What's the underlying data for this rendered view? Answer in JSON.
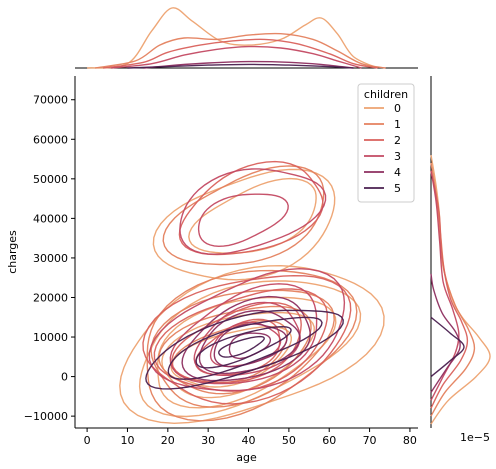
{
  "chart_data": {
    "type": "kde-joint",
    "xlabel": "age",
    "ylabel": "charges",
    "xlim": [
      -3,
      82
    ],
    "ylim": [
      -13000,
      76000
    ],
    "xticks": [
      0,
      10,
      20,
      30,
      40,
      50,
      60,
      70,
      80
    ],
    "yticks": [
      -10000,
      0,
      10000,
      20000,
      30000,
      40000,
      50000,
      60000,
      70000
    ],
    "right_marginal_offset_label": "1e−5",
    "legend": {
      "title": "children",
      "placement": "top-right",
      "entries": [
        "0",
        "1",
        "2",
        "3",
        "4",
        "5"
      ]
    },
    "series": [
      {
        "name": "0",
        "color": "#eda270",
        "contours": [
          {
            "cx": 40,
            "cy": 8500,
            "rx": 32,
            "ry": 18000
          },
          {
            "cx": 39,
            "cy": 8000,
            "rx": 28,
            "ry": 14500
          },
          {
            "cx": 38,
            "cy": 7000,
            "rx": 24,
            "ry": 11500
          },
          {
            "cx": 37,
            "cy": 6000,
            "rx": 20,
            "ry": 9000
          },
          {
            "cx": 36,
            "cy": 5000,
            "rx": 15,
            "ry": 6500
          },
          {
            "cx": 40,
            "cy": 38000,
            "rx": 22,
            "ry": 13000
          },
          {
            "cx": 42,
            "cy": 40000,
            "rx": 16,
            "ry": 8000
          }
        ],
        "x_marginal": [
          [
            0,
            0
          ],
          [
            10,
            0.3
          ],
          [
            16,
            2.6
          ],
          [
            21,
            4.2
          ],
          [
            26,
            3.3
          ],
          [
            33,
            1.9
          ],
          [
            40,
            1.6
          ],
          [
            48,
            2.0
          ],
          [
            54,
            3.0
          ],
          [
            58,
            3.5
          ],
          [
            62,
            2.4
          ],
          [
            66,
            0.8
          ],
          [
            72,
            0
          ]
        ],
        "y_marginal": [
          [
            -12000,
            0
          ],
          [
            -6000,
            2.0
          ],
          [
            0,
            5.2
          ],
          [
            5000,
            6.8
          ],
          [
            10000,
            5.5
          ],
          [
            15000,
            3.6
          ],
          [
            20000,
            2.4
          ],
          [
            30000,
            1.2
          ],
          [
            40000,
            1.0
          ],
          [
            48000,
            0.6
          ],
          [
            56000,
            0
          ]
        ]
      },
      {
        "name": "1",
        "color": "#e4815e",
        "contours": [
          {
            "cx": 39,
            "cy": 9000,
            "rx": 28,
            "ry": 16500
          },
          {
            "cx": 38,
            "cy": 8000,
            "rx": 24,
            "ry": 13000
          },
          {
            "cx": 37,
            "cy": 7000,
            "rx": 19,
            "ry": 10000
          },
          {
            "cx": 36,
            "cy": 6000,
            "rx": 14,
            "ry": 7000
          },
          {
            "cx": 40,
            "cy": 40000,
            "rx": 20,
            "ry": 11000
          }
        ],
        "x_marginal": [
          [
            2,
            0
          ],
          [
            12,
            0.5
          ],
          [
            18,
            1.6
          ],
          [
            24,
            2.1
          ],
          [
            32,
            2.0
          ],
          [
            40,
            2.3
          ],
          [
            48,
            2.4
          ],
          [
            56,
            2.0
          ],
          [
            62,
            1.2
          ],
          [
            68,
            0.3
          ],
          [
            74,
            0
          ]
        ],
        "y_marginal": [
          [
            -10000,
            0
          ],
          [
            -4000,
            1.6
          ],
          [
            2000,
            4.0
          ],
          [
            7000,
            5.0
          ],
          [
            12000,
            4.3
          ],
          [
            18000,
            2.8
          ],
          [
            26000,
            1.6
          ],
          [
            36000,
            1.1
          ],
          [
            46000,
            0.6
          ],
          [
            54000,
            0
          ]
        ]
      },
      {
        "name": "2",
        "color": "#d9615c",
        "contours": [
          {
            "cx": 40,
            "cy": 10000,
            "rx": 26,
            "ry": 15000
          },
          {
            "cx": 39,
            "cy": 9000,
            "rx": 21,
            "ry": 12000
          },
          {
            "cx": 38,
            "cy": 8000,
            "rx": 16,
            "ry": 9000
          },
          {
            "cx": 38,
            "cy": 7000,
            "rx": 11,
            "ry": 6000
          },
          {
            "cx": 41,
            "cy": 42000,
            "rx": 19,
            "ry": 10000
          }
        ],
        "x_marginal": [
          [
            4,
            0
          ],
          [
            14,
            0.4
          ],
          [
            20,
            1.1
          ],
          [
            28,
            1.6
          ],
          [
            36,
            1.9
          ],
          [
            44,
            2.0
          ],
          [
            52,
            1.7
          ],
          [
            60,
            1.0
          ],
          [
            66,
            0.3
          ],
          [
            72,
            0
          ]
        ],
        "y_marginal": [
          [
            -8000,
            0
          ],
          [
            -2000,
            1.4
          ],
          [
            4000,
            3.4
          ],
          [
            9000,
            4.2
          ],
          [
            14000,
            3.5
          ],
          [
            20000,
            2.2
          ],
          [
            30000,
            1.3
          ],
          [
            42000,
            0.9
          ],
          [
            52000,
            0
          ]
        ]
      },
      {
        "name": "3",
        "color": "#c34962",
        "contours": [
          {
            "cx": 41,
            "cy": 11000,
            "rx": 24,
            "ry": 14000
          },
          {
            "cx": 40,
            "cy": 10000,
            "rx": 19,
            "ry": 11000
          },
          {
            "cx": 40,
            "cy": 9000,
            "rx": 14,
            "ry": 8000
          },
          {
            "cx": 39,
            "cy": 8000,
            "rx": 9,
            "ry": 5000
          },
          {
            "cx": 40,
            "cy": 42000,
            "rx": 18,
            "ry": 10000
          },
          {
            "cx": 38,
            "cy": 40000,
            "rx": 11,
            "ry": 6000
          }
        ],
        "x_marginal": [
          [
            6,
            0
          ],
          [
            16,
            0.3
          ],
          [
            24,
            0.9
          ],
          [
            32,
            1.3
          ],
          [
            40,
            1.5
          ],
          [
            48,
            1.4
          ],
          [
            56,
            1.0
          ],
          [
            62,
            0.5
          ],
          [
            68,
            0
          ]
        ],
        "y_marginal": [
          [
            -6000,
            0
          ],
          [
            0,
            1.4
          ],
          [
            6000,
            2.8
          ],
          [
            11000,
            3.2
          ],
          [
            17000,
            2.5
          ],
          [
            24000,
            1.4
          ],
          [
            34000,
            1.0
          ],
          [
            44000,
            0.6
          ],
          [
            52000,
            0
          ]
        ]
      },
      {
        "name": "4",
        "color": "#8d2e5f",
        "contours": [
          {
            "cx": 40,
            "cy": 9000,
            "rx": 17,
            "ry": 9000
          },
          {
            "cx": 40,
            "cy": 8500,
            "rx": 13,
            "ry": 7000
          },
          {
            "cx": 40,
            "cy": 8000,
            "rx": 9,
            "ry": 5000
          },
          {
            "cx": 40,
            "cy": 8000,
            "rx": 5,
            "ry": 3000
          }
        ],
        "x_marginal": [
          [
            14,
            0
          ],
          [
            22,
            0.2
          ],
          [
            30,
            0.35
          ],
          [
            40,
            0.45
          ],
          [
            50,
            0.4
          ],
          [
            58,
            0.25
          ],
          [
            66,
            0
          ]
        ],
        "y_marginal": [
          [
            -4000,
            0
          ],
          [
            2000,
            1.8
          ],
          [
            7000,
            3.3
          ],
          [
            11000,
            2.9
          ],
          [
            16000,
            1.3
          ],
          [
            22000,
            0.3
          ],
          [
            26000,
            0
          ]
        ]
      },
      {
        "name": "5",
        "color": "#4a1f4f",
        "contours": [
          {
            "cx": 38,
            "cy": 7500,
            "rx": 25,
            "ry": 7000
          },
          {
            "cx": 38,
            "cy": 7500,
            "rx": 19,
            "ry": 5000
          },
          {
            "cx": 38,
            "cy": 7500,
            "rx": 12,
            "ry": 3200
          },
          {
            "cx": 38,
            "cy": 7500,
            "rx": 6,
            "ry": 1600
          }
        ],
        "x_marginal": [
          [
            10,
            0
          ],
          [
            20,
            0.1
          ],
          [
            30,
            0.2
          ],
          [
            40,
            0.25
          ],
          [
            50,
            0.2
          ],
          [
            60,
            0.1
          ],
          [
            66,
            0
          ]
        ],
        "y_marginal": [
          [
            0,
            0
          ],
          [
            4000,
            2.2
          ],
          [
            7500,
            3.8
          ],
          [
            11000,
            2.2
          ],
          [
            15000,
            0
          ]
        ]
      }
    ]
  }
}
